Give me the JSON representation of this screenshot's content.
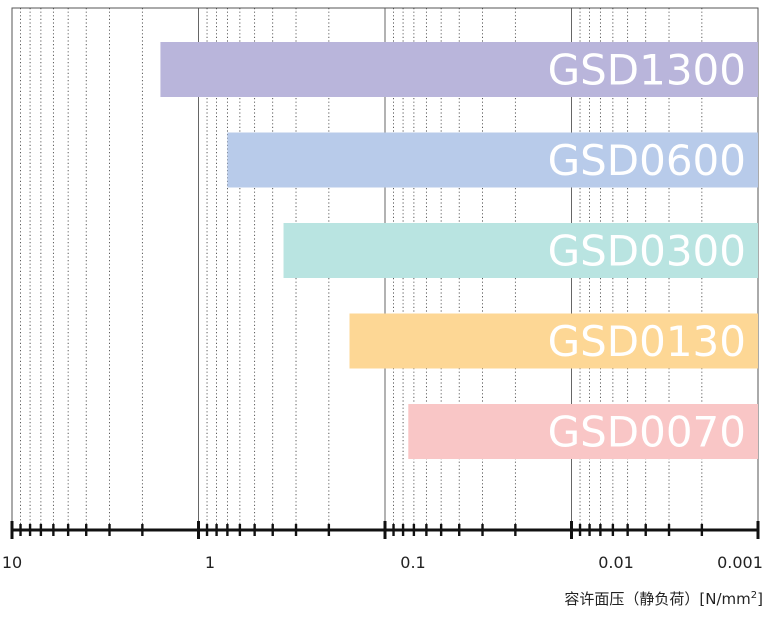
{
  "chart_data": {
    "type": "bar",
    "orientation": "horizontal",
    "x_scale": "log",
    "x_reversed": true,
    "xlim": [
      10,
      0.001
    ],
    "grid": true,
    "xlabel": {
      "main": "容许面压（静负荷）[N/mm",
      "sup": "2",
      "end": "]"
    },
    "tick_labels": [
      "10",
      "1",
      "0.1",
      "0.01",
      "0.001"
    ],
    "tick_values": [
      10,
      1,
      0.1,
      0.01,
      0.001
    ],
    "categories": [
      "GSD1300",
      "GSD0600",
      "GSD0300",
      "GSD0130",
      "GSD0070"
    ],
    "ranges": [
      {
        "name": "GSD1300",
        "max": 1.6,
        "min": 0.001,
        "color": "#b9b5db"
      },
      {
        "name": "GSD0600",
        "max": 0.7,
        "min": 0.001,
        "color": "#b8cbea"
      },
      {
        "name": "GSD0300",
        "max": 0.35,
        "min": 0.001,
        "color": "#b9e4e1"
      },
      {
        "name": "GSD0130",
        "max": 0.155,
        "min": 0.001,
        "color": "#fdd795"
      },
      {
        "name": "GSD0070",
        "max": 0.075,
        "min": 0.001,
        "color": "#f9c6c6"
      }
    ]
  }
}
